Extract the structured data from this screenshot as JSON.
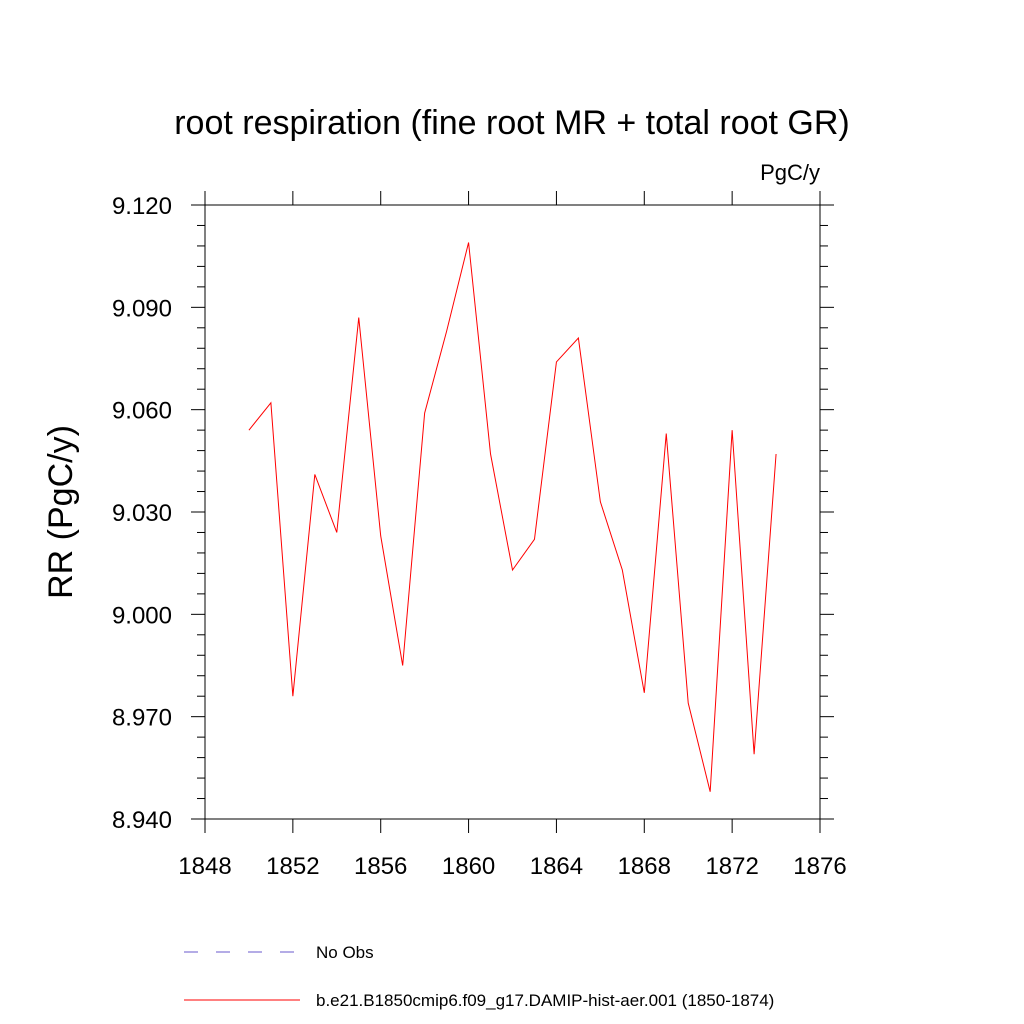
{
  "chart_data": {
    "type": "line",
    "title": "root respiration (fine root MR + total root GR)",
    "units": "PgC/y",
    "ylabel": "RR  (PgC/y)",
    "xlabel": "",
    "xlim": [
      1848,
      1876
    ],
    "ylim": [
      8.94,
      9.12
    ],
    "x_ticks": [
      1848,
      1852,
      1856,
      1860,
      1864,
      1868,
      1872,
      1876
    ],
    "x_tick_labels": [
      "1848",
      "1852",
      "1856",
      "1860",
      "1864",
      "1868",
      "1872",
      "1876"
    ],
    "y_ticks": [
      8.94,
      8.97,
      9.0,
      9.03,
      9.06,
      9.09,
      9.12
    ],
    "y_tick_labels": [
      "8.940",
      "8.970",
      "9.000",
      "9.030",
      "9.060",
      "9.090",
      "9.120"
    ],
    "grid": false,
    "legend_position": "bottom",
    "series": [
      {
        "name": "b.e21.B1850cmip6.f09_g17.DAMIP-hist-aer.001 (1850-1874)",
        "color": "#ff0000",
        "style": "solid",
        "x": [
          1850,
          1851,
          1852,
          1853,
          1854,
          1855,
          1856,
          1857,
          1858,
          1859,
          1860,
          1861,
          1862,
          1863,
          1864,
          1865,
          1866,
          1867,
          1868,
          1869,
          1870,
          1871,
          1872,
          1873,
          1874
        ],
        "values": [
          9.054,
          9.062,
          8.976,
          9.041,
          9.024,
          9.087,
          9.023,
          8.985,
          9.059,
          9.083,
          9.109,
          9.047,
          9.013,
          9.022,
          9.074,
          9.081,
          9.033,
          9.013,
          8.977,
          9.053,
          8.974,
          8.948,
          9.054,
          8.959,
          9.047
        ]
      }
    ],
    "legend": [
      {
        "label": "No Obs",
        "color": "#6a5acd",
        "style": "dashed"
      },
      {
        "label": "b.e21.B1850cmip6.f09_g17.DAMIP-hist-aer.001 (1850-1874)",
        "color": "#ff0000",
        "style": "solid"
      }
    ]
  }
}
